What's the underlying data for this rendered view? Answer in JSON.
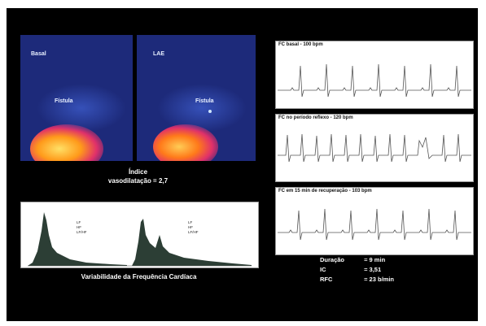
{
  "thermal": {
    "left_label": "Basal",
    "right_label": "LAE",
    "left_spot_label": "Fístula",
    "right_spot_label": "Fístula",
    "caption_line1": "Índice",
    "caption_line2": "vasodilatação = 2,7"
  },
  "hrv": {
    "caption": "Variabilidade da Frequência Cardíaca",
    "left_legend": [
      "LF",
      "HF",
      "LF/HF"
    ],
    "right_legend": [
      "LF",
      "HF",
      "LF/HF"
    ]
  },
  "ecg": {
    "strip1_title": "FC basal - 100 bpm",
    "strip2_title": "FC no período reflexo - 120 bpm",
    "strip3_title": "FC em 15 min de recuperação - 103 bpm"
  },
  "stats": [
    {
      "label": "Duração",
      "value": "= 9 min"
    },
    {
      "label": "IC",
      "value": "= 3,51"
    },
    {
      "label": "RFC",
      "value": "= 23 b/min"
    }
  ],
  "colors": {
    "background": "#000000",
    "thermal_cold": "#1d2a7a",
    "thermal_hot": "#ff9a1a",
    "hrv_fill": "#2c3e35"
  }
}
